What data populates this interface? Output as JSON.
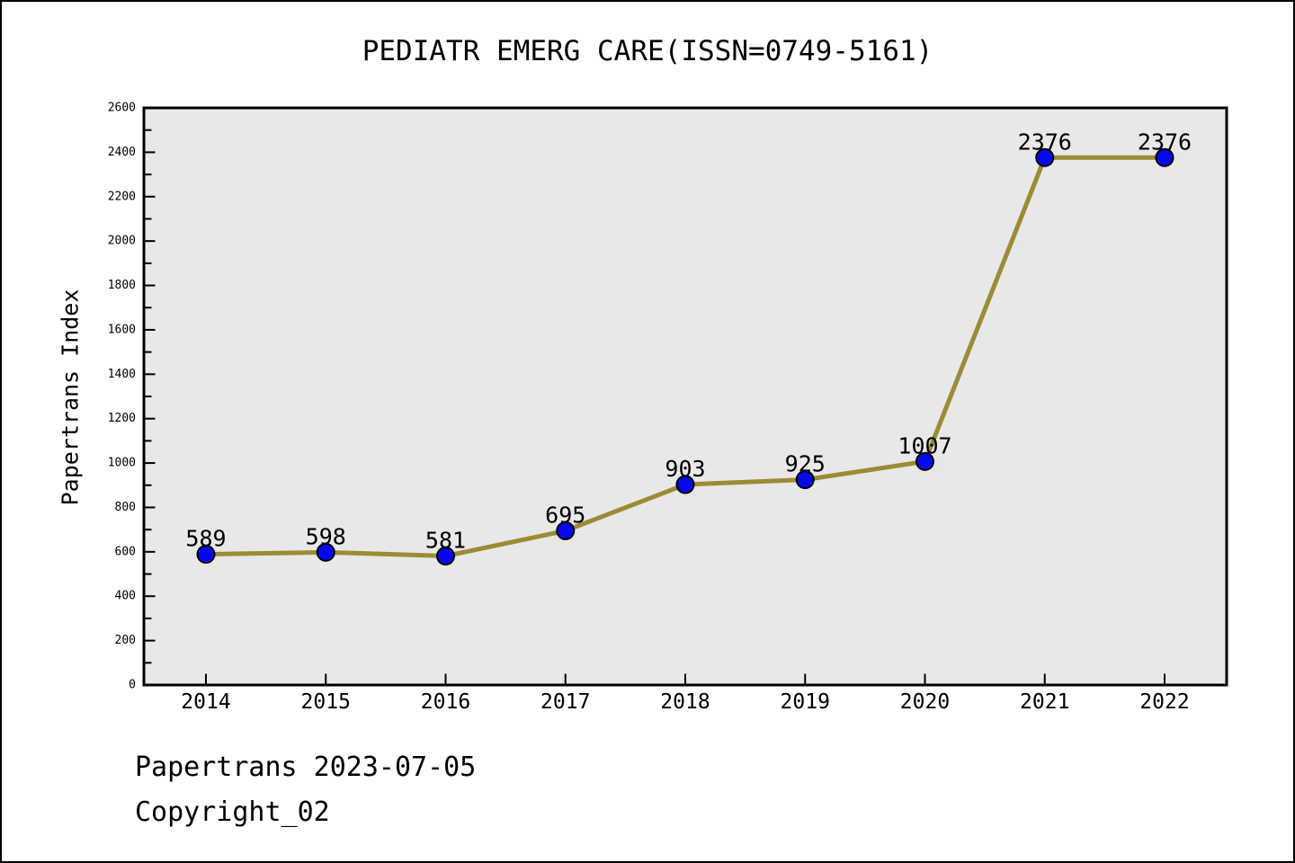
{
  "header": {
    "title": "PEDIATR EMERG CARE(ISSN=0749-5161)"
  },
  "footer": {
    "line1": "Papertrans 2023-07-05",
    "line2": "Copyright_02"
  },
  "chart_data": {
    "type": "line",
    "title": "PEDIATR EMERG CARE(ISSN=0749-5161)",
    "categories": [
      "2014",
      "2015",
      "2016",
      "2017",
      "2018",
      "2019",
      "2020",
      "2021",
      "2022"
    ],
    "values": [
      589,
      598,
      581,
      695,
      903,
      925,
      1007,
      2376,
      2376
    ],
    "data_labels": [
      "589",
      "598",
      "581",
      "695",
      "903",
      "925",
      "1007",
      "2376",
      "2376"
    ],
    "xlabel": "",
    "ylabel": "Papertrans Index",
    "ylim": [
      0,
      2600
    ],
    "ytick_step": 200,
    "yminor_step": 100,
    "grid": false,
    "legend_position": "none",
    "colors": {
      "line": "#9c8b36",
      "marker_fill": "#0707ee",
      "marker_edge": "#000000",
      "plot_background": "#e8e8e8",
      "axis": "#000000",
      "text": "#000000"
    }
  }
}
